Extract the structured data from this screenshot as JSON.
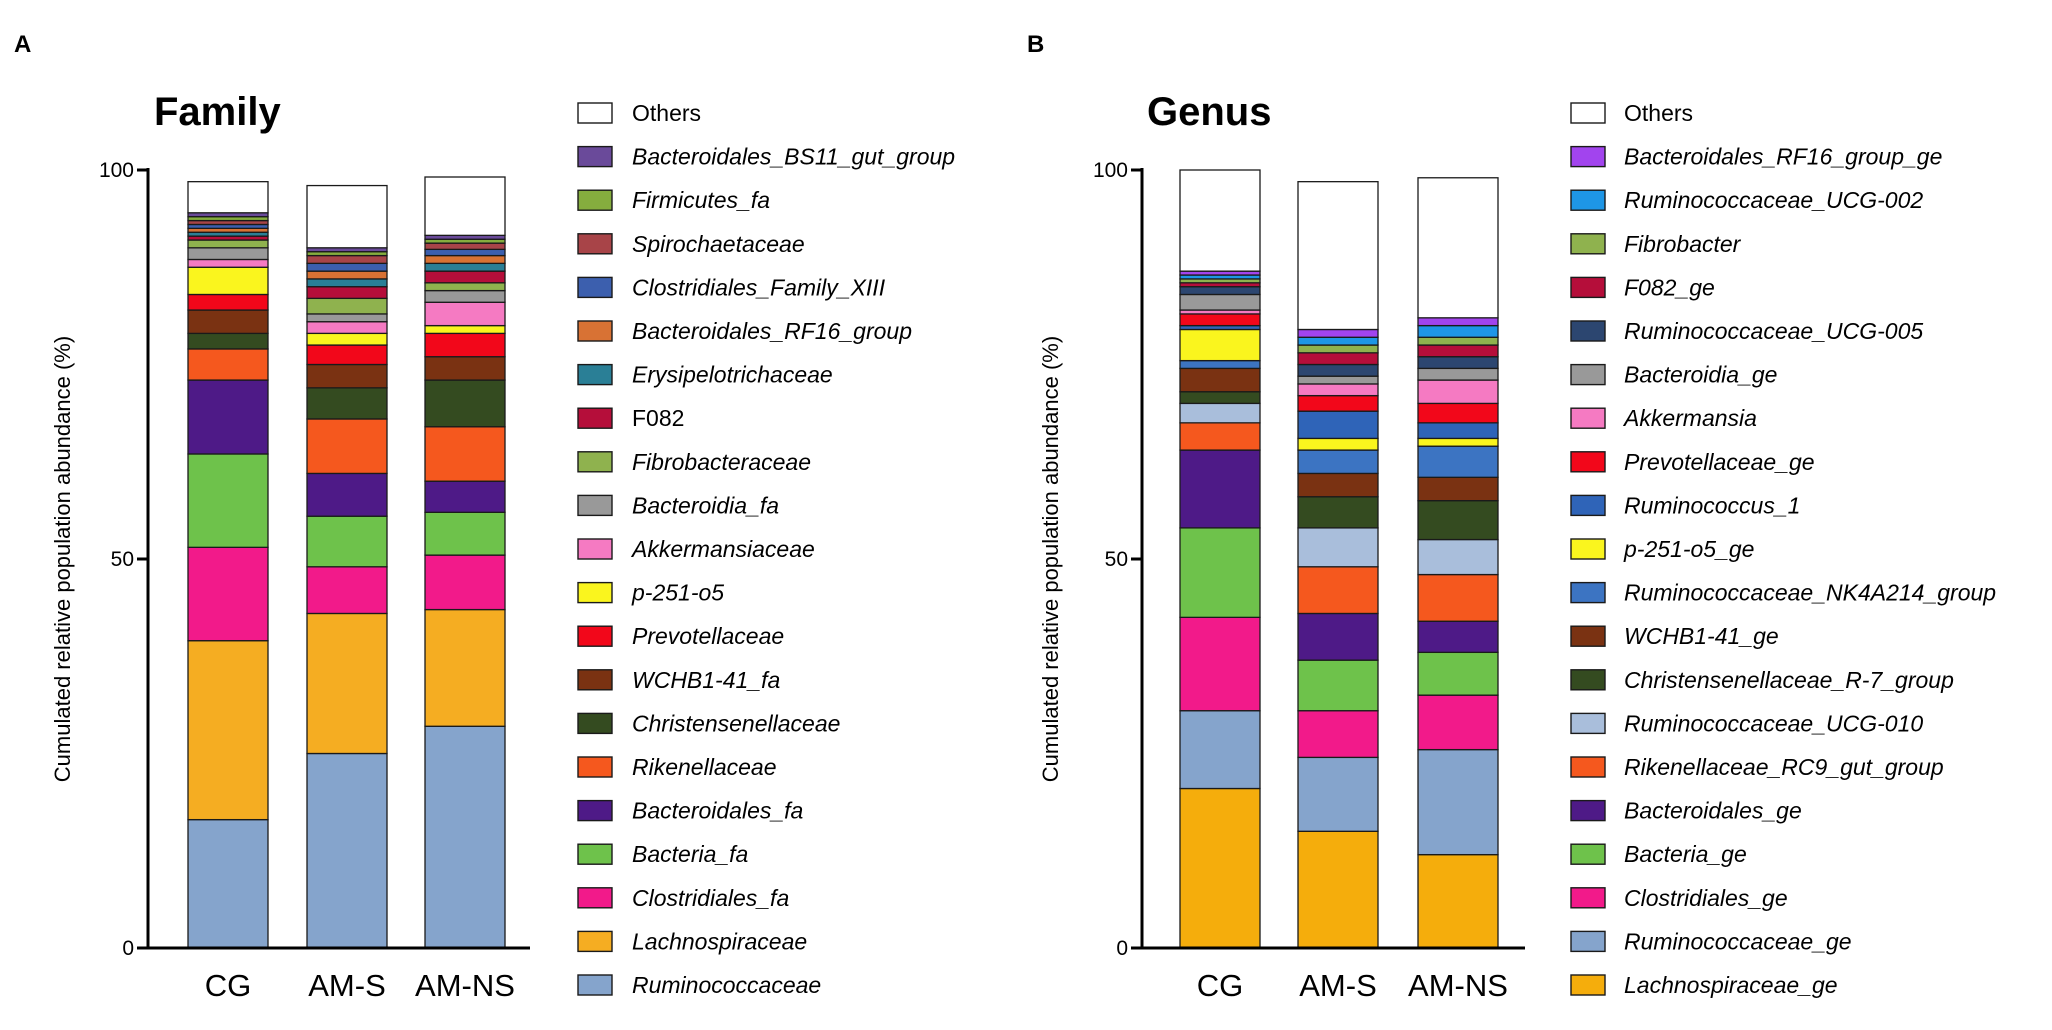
{
  "chart_data": [
    {
      "panel_label": "A",
      "type": "bar",
      "stacked": true,
      "title": "Family",
      "xlabel": "",
      "ylabel": "Cumulated relative population abundance (%)",
      "ylim": [
        0,
        100
      ],
      "yticks": [
        "0",
        "50",
        "100"
      ],
      "categories": [
        "CG",
        "AM-S",
        "AM-NS"
      ],
      "legend_position": "right",
      "series": [
        {
          "name": "Ruminococcaceae",
          "italic": true,
          "color": "#85A4CC",
          "values": [
            16.5,
            25.0,
            28.5
          ]
        },
        {
          "name": "Lachnospiraceae",
          "italic": true,
          "color": "#F5AD22",
          "values": [
            23.0,
            18.0,
            15.0
          ]
        },
        {
          "name": "Clostridiales_fa",
          "italic": true,
          "color": "#F21A8A",
          "values": [
            12.0,
            6.0,
            7.0
          ]
        },
        {
          "name": "Bacteria_fa",
          "italic": true,
          "color": "#6EC24B",
          "values": [
            12.0,
            6.5,
            5.5
          ]
        },
        {
          "name": "Bacteroidales_fa",
          "italic": true,
          "color": "#4E1A87",
          "values": [
            9.5,
            5.5,
            4.0
          ]
        },
        {
          "name": "Rikenellaceae",
          "italic": true,
          "color": "#F5581E",
          "values": [
            4.0,
            7.0,
            7.0
          ]
        },
        {
          "name": "Christensenellaceae",
          "italic": true,
          "color": "#344B20",
          "values": [
            2.0,
            4.0,
            6.0
          ]
        },
        {
          "name": "WCHB1-41_fa",
          "italic": true,
          "color": "#7A3212",
          "values": [
            3.0,
            3.0,
            3.0
          ]
        },
        {
          "name": "Prevotellaceae",
          "italic": true,
          "color": "#F2071A",
          "values": [
            2.0,
            2.5,
            3.0
          ]
        },
        {
          "name": "p-251-o5",
          "italic": true,
          "color": "#FAF51E",
          "values": [
            3.5,
            1.5,
            1.0
          ]
        },
        {
          "name": "Akkermansiaceae",
          "italic": true,
          "color": "#F57AC2",
          "values": [
            1.0,
            1.5,
            3.0
          ]
        },
        {
          "name": "Bacteroidia_fa",
          "italic": true,
          "color": "#999999",
          "values": [
            1.5,
            1.0,
            1.5
          ]
        },
        {
          "name": "Fibrobacteraceae",
          "italic": true,
          "color": "#8FB24E",
          "values": [
            1.0,
            2.0,
            1.0
          ]
        },
        {
          "name": "F082",
          "italic": false,
          "color": "#B50E3A",
          "values": [
            0.5,
            1.5,
            1.5
          ]
        },
        {
          "name": "Erysipelotrichaceae",
          "italic": true,
          "color": "#2A7F96",
          "values": [
            0.5,
            1.0,
            1.0
          ]
        },
        {
          "name": "Bacteroidales_RF16_group",
          "italic": true,
          "color": "#D87234",
          "values": [
            0.5,
            1.0,
            1.0
          ]
        },
        {
          "name": "Clostridiales_Family_XIII",
          "italic": true,
          "color": "#3C5FAE",
          "values": [
            0.5,
            1.0,
            0.8
          ]
        },
        {
          "name": "Spirochaetaceae",
          "italic": true,
          "color": "#A84448",
          "values": [
            0.5,
            1.0,
            0.8
          ]
        },
        {
          "name": "Firmicutes_fa",
          "italic": true,
          "color": "#85AD3E",
          "values": [
            0.5,
            0.5,
            0.5
          ]
        },
        {
          "name": "Bacteroidales_BS11_gut_group",
          "italic": true,
          "color": "#6A4A9A",
          "values": [
            0.5,
            0.5,
            0.5
          ]
        },
        {
          "name": "Others",
          "italic": false,
          "color": "#FFFFFF",
          "values": [
            4.0,
            8.0,
            7.5
          ]
        }
      ]
    },
    {
      "panel_label": "B",
      "type": "bar",
      "stacked": true,
      "title": "Genus",
      "xlabel": "",
      "ylabel": "Cumulated relative population abundance (%)",
      "ylim": [
        0,
        100
      ],
      "yticks": [
        "0",
        "50",
        "100"
      ],
      "categories": [
        "CG",
        "AM-S",
        "AM-NS"
      ],
      "legend_position": "right",
      "series": [
        {
          "name": "Lachnospiraceae_ge",
          "italic": true,
          "color": "#F5AD0C",
          "values": [
            20.5,
            15.0,
            12.0
          ]
        },
        {
          "name": "Ruminococcaceae_ge",
          "italic": true,
          "color": "#85A4CC",
          "values": [
            10.0,
            9.5,
            13.5
          ]
        },
        {
          "name": "Clostridiales_ge",
          "italic": true,
          "color": "#F21A8A",
          "values": [
            12.0,
            6.0,
            7.0
          ]
        },
        {
          "name": "Bacteria_ge",
          "italic": true,
          "color": "#6EC24B",
          "values": [
            11.5,
            6.5,
            5.5
          ]
        },
        {
          "name": "Bacteroidales_ge",
          "italic": true,
          "color": "#4E1A87",
          "values": [
            10.0,
            6.0,
            4.0
          ]
        },
        {
          "name": "Rikenellaceae_RC9_gut_group",
          "italic": true,
          "color": "#F5581E",
          "values": [
            3.5,
            6.0,
            6.0
          ]
        },
        {
          "name": "Ruminococcaceae_UCG-010",
          "italic": true,
          "color": "#A9BEDB",
          "values": [
            2.5,
            5.0,
            4.5
          ]
        },
        {
          "name": "Christensenellaceae_R-7_group",
          "italic": true,
          "color": "#344B20",
          "values": [
            1.5,
            4.0,
            5.0
          ]
        },
        {
          "name": "WCHB1-41_ge",
          "italic": true,
          "color": "#7A3212",
          "values": [
            3.0,
            3.0,
            3.0
          ]
        },
        {
          "name": "Ruminococcaceae_NK4A214_group",
          "italic": true,
          "color": "#3C74C2",
          "values": [
            1.0,
            3.0,
            4.0
          ]
        },
        {
          "name": "p-251-o5_ge",
          "italic": true,
          "color": "#FAF51E",
          "values": [
            4.0,
            1.5,
            1.0
          ]
        },
        {
          "name": "Ruminococcus_1",
          "italic": true,
          "color": "#2F64B8",
          "values": [
            0.5,
            3.5,
            2.0
          ]
        },
        {
          "name": "Prevotellaceae_ge",
          "italic": true,
          "color": "#F2071A",
          "values": [
            1.5,
            2.0,
            2.5
          ]
        },
        {
          "name": "Akkermansia",
          "italic": true,
          "color": "#F57AC2",
          "values": [
            0.5,
            1.5,
            3.0
          ]
        },
        {
          "name": "Bacteroidia_ge",
          "italic": true,
          "color": "#999999",
          "values": [
            2.0,
            1.0,
            1.5
          ]
        },
        {
          "name": "Ruminococcaceae_UCG-005",
          "italic": true,
          "color": "#2C4670",
          "values": [
            1.0,
            1.5,
            1.5
          ]
        },
        {
          "name": "F082_ge",
          "italic": true,
          "color": "#B50E3A",
          "values": [
            0.5,
            1.5,
            1.5
          ]
        },
        {
          "name": "Fibrobacter",
          "italic": true,
          "color": "#8FB24E",
          "values": [
            0.5,
            1.0,
            1.0
          ]
        },
        {
          "name": "Ruminococcaceae_UCG-002",
          "italic": true,
          "color": "#1E96E6",
          "values": [
            0.5,
            1.0,
            1.5
          ]
        },
        {
          "name": "Bacteroidales_RF16_group_ge",
          "italic": true,
          "color": "#A244EE",
          "values": [
            0.5,
            1.0,
            1.0
          ]
        },
        {
          "name": "Others",
          "italic": false,
          "color": "#FFFFFF",
          "values": [
            13.0,
            19.0,
            18.0
          ]
        }
      ]
    }
  ]
}
